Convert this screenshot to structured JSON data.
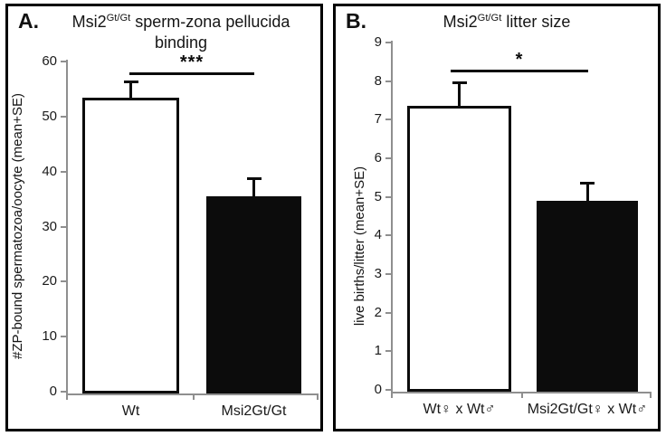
{
  "panels": [
    {
      "panel_label": "A.",
      "title": {
        "pre": "Msi2",
        "sup": "Gt/Gt",
        "post": " sperm-zona pellucida binding"
      },
      "ylabel": "#ZP-bound spermatozoa/oocyte (mean+SE)"
    },
    {
      "panel_label": "B.",
      "title": {
        "pre": "Msi2",
        "sup": "Gt/Gt",
        "post": " litter size"
      },
      "ylabel": "live births/litter (mean+SE)"
    }
  ],
  "chart_data": [
    {
      "type": "bar",
      "panel": "A",
      "title": "Msi2Gt/Gt sperm-zona pellucida binding",
      "categories": [
        "Wt",
        "Msi2Gt/Gt"
      ],
      "values": [
        53.5,
        35.5
      ],
      "se": [
        3.0,
        3.5
      ],
      "xlabel": "",
      "ylabel": "#ZP-bound spermatozoa/oocyte (mean+SE)",
      "ylim": [
        0,
        60
      ],
      "ytick_step": 10,
      "significance": "***",
      "bar_fill": [
        "#ffffff",
        "#0c0c0c"
      ],
      "bar_edge": "#0c0c0c",
      "grid": false,
      "legend": "none"
    },
    {
      "type": "bar",
      "panel": "B",
      "title": "Msi2Gt/Gt litter size",
      "categories": [
        "Wt♀ x Wt♂",
        "Msi2Gt/Gt♀ x Wt♂"
      ],
      "values": [
        7.35,
        4.9
      ],
      "se": [
        0.65,
        0.5
      ],
      "xlabel": "",
      "ylabel": "live births/litter (mean+SE)",
      "ylim": [
        0,
        9
      ],
      "ytick_step": 1,
      "significance": "*",
      "bar_fill": [
        "#ffffff",
        "#0c0c0c"
      ],
      "bar_edge": "#0c0c0c",
      "grid": false,
      "legend": "none"
    }
  ],
  "colors": {
    "background": "#ffffff",
    "panel_border": "#000000",
    "axis": "#8f8f8f",
    "bar_black": "#0c0c0c",
    "bar_white": "#ffffff",
    "text": "#151515"
  }
}
